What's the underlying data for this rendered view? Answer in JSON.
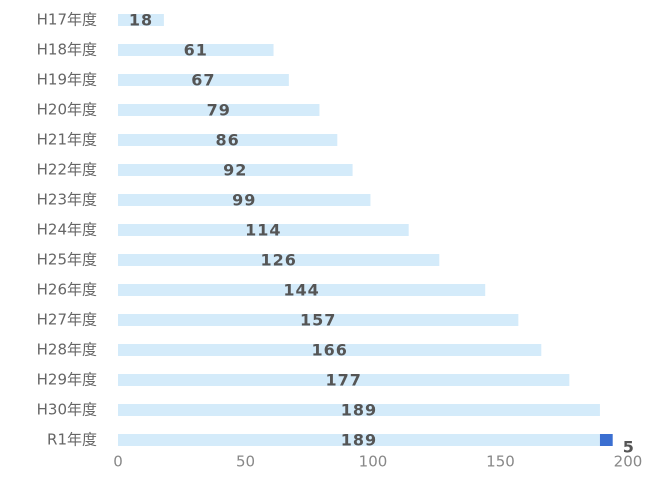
{
  "chart_data": {
    "type": "bar",
    "orientation": "horizontal",
    "categories": [
      "H17年度",
      "H18年度",
      "H19年度",
      "H20年度",
      "H21年度",
      "H22年度",
      "H23年度",
      "H24年度",
      "H25年度",
      "H26年度",
      "H27年度",
      "H28年度",
      "H29年度",
      "H30年度",
      "R1年度"
    ],
    "series": [
      {
        "color": "#d4ebfa",
        "values": [
          18,
          61,
          67,
          79,
          86,
          92,
          99,
          114,
          126,
          144,
          157,
          166,
          177,
          189,
          189
        ]
      },
      {
        "color": "#3b6fd1",
        "values": [
          null,
          null,
          null,
          null,
          null,
          null,
          null,
          null,
          null,
          null,
          null,
          null,
          null,
          null,
          5
        ]
      }
    ],
    "xlim": [
      0,
      200
    ],
    "xticks": [
      0,
      50,
      100,
      150,
      200
    ]
  }
}
